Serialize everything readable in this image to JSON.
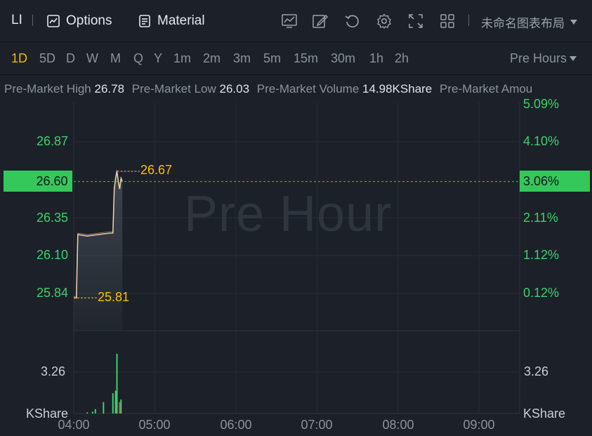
{
  "toolbar": {
    "symbol": "LI",
    "options_label": "Options",
    "material_label": "Material",
    "layout_label": "未命名图表布局",
    "icons": [
      "chart-indicator-icon",
      "draw-pen-icon",
      "reset-icon",
      "settings-gear-icon",
      "fullscreen-icon",
      "grid-layout-icon"
    ]
  },
  "periods": {
    "items": [
      "1D",
      "5D",
      "D",
      "W",
      "M",
      "Q",
      "Y",
      "1m",
      "2m",
      "3m",
      "5m",
      "15m",
      "30m",
      "1h",
      "2h"
    ],
    "active": "1D",
    "session_label": "Pre Hours"
  },
  "stats": {
    "high_label": "Pre-Market High",
    "high_value": "26.78",
    "low_label": "Pre-Market Low",
    "low_value": "26.03",
    "volume_label": "Pre-Market Volume",
    "volume_value": "14.98KShare",
    "amount_label": "Pre-Market Amou"
  },
  "chart_data": {
    "type": "line",
    "watermark": "Pre Hour",
    "price_axis_left": [
      "26.87",
      "26.35",
      "26.10",
      "25.84"
    ],
    "price_axis_right": [
      "5.09%",
      "4.10%",
      "2.11%",
      "1.12%",
      "0.12%"
    ],
    "current_price": "26.60",
    "current_change": "3.06%",
    "high_marker": "26.67",
    "low_marker": "25.81",
    "volume_axis_left": "3.26",
    "volume_axis_right": "3.26",
    "volume_unit_left": "KShare",
    "volume_unit_right": "KShare",
    "x_ticks": [
      "04:00",
      "05:00",
      "06:00",
      "07:00",
      "08:00",
      "09:00"
    ],
    "price_series": {
      "x": [
        "04:00",
        "04:02",
        "04:03",
        "04:10",
        "04:18",
        "04:27",
        "04:29",
        "04:30",
        "04:31",
        "04:32",
        "04:33",
        "04:34",
        "04:35",
        "04:36"
      ],
      "y": [
        25.81,
        25.81,
        26.24,
        26.23,
        26.24,
        26.25,
        26.25,
        26.55,
        26.62,
        26.67,
        26.6,
        26.55,
        26.62,
        26.6
      ]
    },
    "volume_series": {
      "x": [
        "04:10",
        "04:14",
        "04:16",
        "04:22",
        "04:29",
        "04:31",
        "04:32",
        "04:34",
        "04:35"
      ],
      "values": [
        0.1,
        0.15,
        0.35,
        0.9,
        1.6,
        1.8,
        4.7,
        0.9,
        1.1
      ],
      "colors": [
        "#3fcf6a",
        "#3fcf6a",
        "#3fcf6a",
        "#3fcf6a",
        "#3fcf6a",
        "#3fcf6a",
        "#3fcf6a",
        "#e05252",
        "#3fcf6a"
      ]
    },
    "colors": {
      "up": "#3fcf6a",
      "down": "#e05252",
      "line": "#f0c48a",
      "marker": "#f5c000",
      "current": "#34c759"
    }
  }
}
